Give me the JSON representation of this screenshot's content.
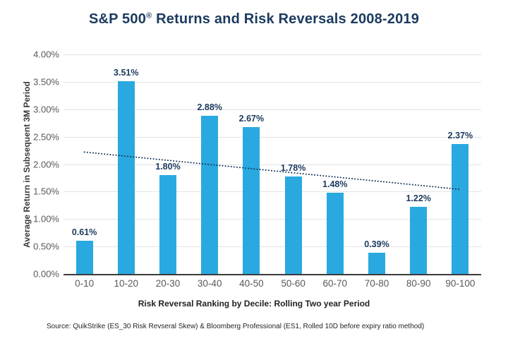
{
  "page": {
    "background_color": "#ffffff",
    "accent_color": "#29a9e0",
    "navy_color": "#1b3a5e"
  },
  "title_parts": {
    "prefix": "S&P 500",
    "registered_mark": "®",
    "suffix": " Returns and Risk Reversals 2008-2019"
  },
  "chart_data": {
    "type": "bar",
    "title": "S&P 500® Returns and Risk Reversals 2008-2019",
    "categories": [
      "0-10",
      "10-20",
      "20-30",
      "30-40",
      "40-50",
      "50-60",
      "60-70",
      "70-80",
      "80-90",
      "90-100"
    ],
    "values": [
      0.61,
      3.51,
      1.8,
      2.88,
      2.67,
      1.78,
      1.48,
      0.39,
      1.22,
      2.37
    ],
    "value_labels": [
      "0.61%",
      "3.51%",
      "1.80%",
      "2.88%",
      "2.67%",
      "1.78%",
      "1.48%",
      "0.39%",
      "1.22%",
      "2.37%"
    ],
    "xlabel": "Risk Reversal Ranking by Decile: Rolling Two year Period",
    "ylabel": "Average Return in Subsequent 3M Period",
    "ylim": [
      0,
      4
    ],
    "ytick_step": 0.5,
    "ytick_labels": [
      "0.00%",
      "0.50%",
      "1.00%",
      "1.50%",
      "2.00%",
      "2.50%",
      "3.00%",
      "3.50%",
      "4.00%"
    ],
    "grid": "horizontal",
    "legend": "none",
    "bar_color": "#29a9e0",
    "label_color": "#1b3a5e",
    "trendline": {
      "style": "dotted",
      "color": "#16365c",
      "start_value": 2.22,
      "end_value": 1.54
    }
  },
  "source_text": "Source: QuikStrike (ES_30 Risk Revseral Skew) & Bloomberg Professional (ES1, Rolled 10D before expiry ratio method)"
}
